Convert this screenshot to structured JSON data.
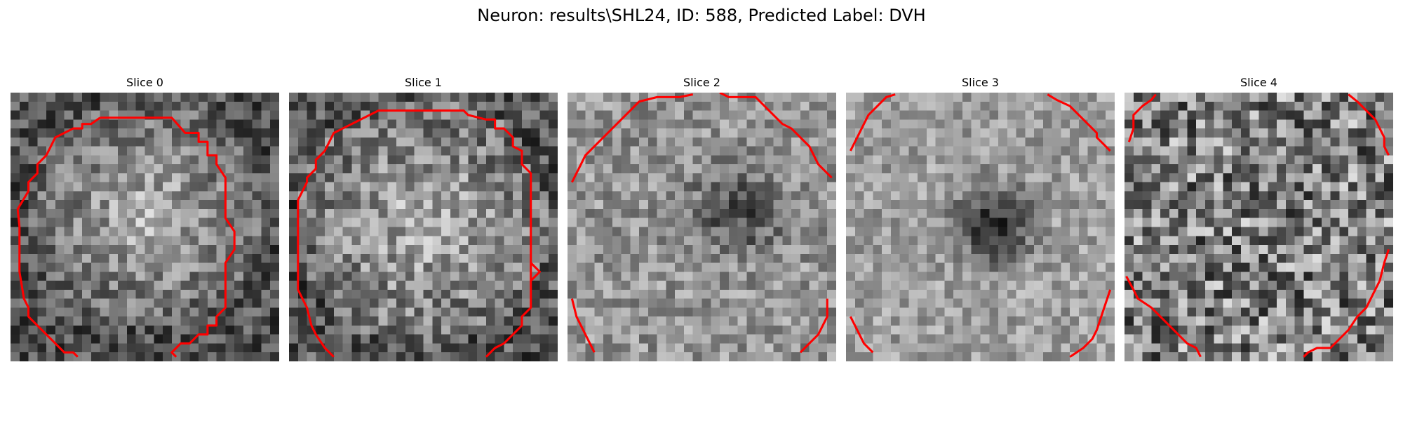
{
  "figure": {
    "title": "Neuron: results\\SHL24, ID: 588, Predicted Label: DVH"
  },
  "panels": [
    {
      "title": "Slice 0"
    },
    {
      "title": "Slice 1"
    },
    {
      "title": "Slice 2"
    },
    {
      "title": "Slice 3"
    },
    {
      "title": "Slice 4"
    }
  ],
  "colors": {
    "contour": "#ff0000",
    "background": "#ffffff"
  },
  "colormap": "gray"
}
